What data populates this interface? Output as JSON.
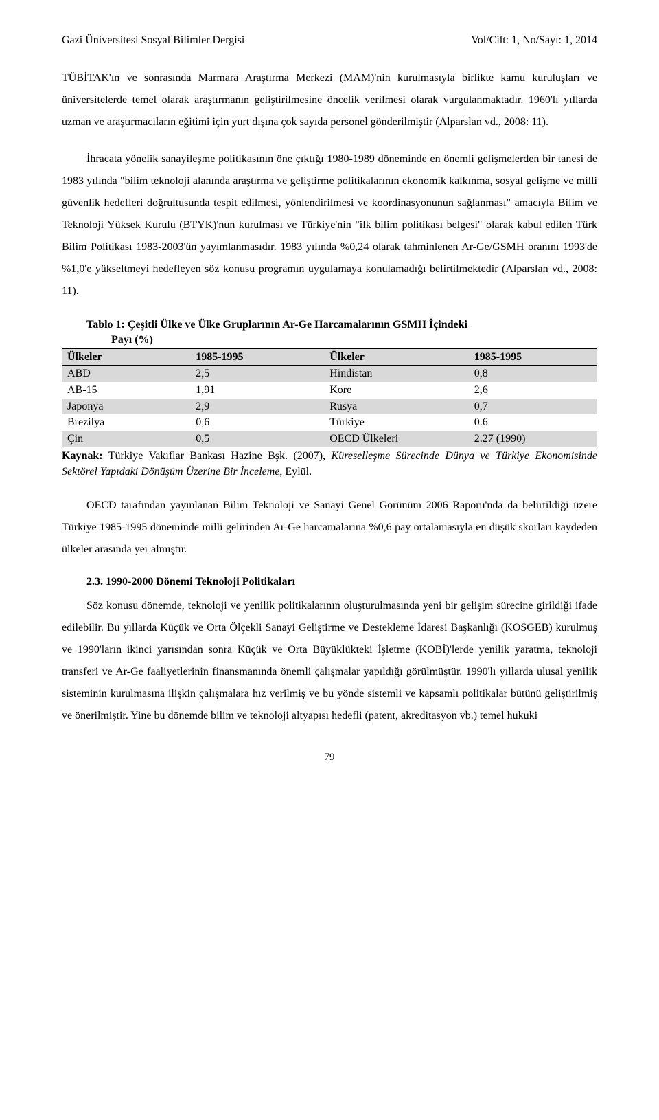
{
  "header": {
    "left": "Gazi Üniversitesi Sosyal Bilimler Dergisi",
    "right": "Vol/Cilt: 1, No/Sayı: 1, 2014"
  },
  "para1": "TÜBİTAK'ın ve sonrasında Marmara Araştırma Merkezi (MAM)'nin kurulmasıyla birlikte kamu kuruluşları ve üniversitelerde temel olarak araştırmanın geliştirilmesine öncelik verilmesi olarak vurgulanmaktadır. 1960'lı yıllarda uzman ve araştırmacıların eğitimi için yurt dışına çok sayıda personel gönderilmiştir (Alparslan vd., 2008: 11).",
  "para2": "İhracata yönelik sanayileşme politikasının öne çıktığı 1980-1989 döneminde en önemli gelişmelerden bir tanesi de 1983 yılında \"bilim teknoloji alanında araştırma ve geliştirme politikalarının ekonomik kalkınma, sosyal gelişme ve milli güvenlik hedefleri doğrultusunda tespit edilmesi, yönlendirilmesi ve koordinasyonunun sağlanması\" amacıyla Bilim ve Teknoloji Yüksek Kurulu (BTYK)'nun kurulması ve Türkiye'nin \"ilk bilim politikası belgesi\" olarak kabul edilen Türk Bilim Politikası 1983-2003'ün yayımlanmasıdır. 1983 yılında %0,24 olarak tahminlenen Ar-Ge/GSMH oranını 1993'de %1,0'e yükseltmeyi hedefleyen söz konusu programın uygulamaya konulamadığı belirtilmektedir (Alparslan vd., 2008: 11).",
  "table": {
    "title_line1": "Tablo 1: Çeşitli Ülke ve Ülke Gruplarının Ar-Ge Harcamalarının GSMH İçindeki",
    "title_line2": "Payı (%)",
    "headers": [
      "Ülkeler",
      "1985-1995",
      "Ülkeler",
      "1985-1995"
    ],
    "rows": [
      {
        "c1": "ABD",
        "c2": "2,5",
        "c3": "Hindistan",
        "c4": "0,8",
        "shaded": true
      },
      {
        "c1": "AB-15",
        "c2": "1,91",
        "c3": "Kore",
        "c4": "2,6",
        "shaded": false
      },
      {
        "c1": "Japonya",
        "c2": "2,9",
        "c3": "Rusya",
        "c4": "0,7",
        "shaded": true
      },
      {
        "c1": "Brezilya",
        "c2": "0,6",
        "c3": "Türkiye",
        "c4": "0.6",
        "shaded": false
      },
      {
        "c1": "Çin",
        "c2": "0,5",
        "c3": "OECD Ülkeleri",
        "c4": "2.27 (1990)",
        "shaded": true
      }
    ]
  },
  "source": {
    "label": "Kaynak:",
    "plain1": " Türkiye Vakıflar Bankası Hazine Bşk. (2007), ",
    "italic": "Küreselleşme Sürecinde Dünya ve Türkiye Ekonomisinde Sektörel Yapıdaki Dönüşüm Üzerine Bir İnceleme",
    "plain2": ", Eylül."
  },
  "para3": "OECD tarafından yayınlanan Bilim Teknoloji ve Sanayi Genel Görünüm 2006 Raporu'nda da belirtildiği üzere Türkiye 1985-1995 döneminde milli gelirinden Ar-Ge harcamalarına %0,6 pay ortalamasıyla en düşük skorları kaydeden ülkeler arasında yer almıştır.",
  "section": {
    "heading": "2.3.  1990-2000 Dönemi Teknoloji Politikaları"
  },
  "para4": "Söz konusu dönemde, teknoloji ve yenilik politikalarının oluşturulmasında yeni bir gelişim sürecine girildiği ifade edilebilir. Bu yıllarda Küçük ve Orta Ölçekli Sanayi Geliştirme ve Destekleme İdaresi Başkanlığı (KOSGEB) kurulmuş ve 1990'ların ikinci yarısından sonra Küçük ve Orta Büyüklükteki İşletme (KOBİ)'lerde yenilik yaratma, teknoloji transferi ve Ar-Ge faaliyetlerinin finansmanında önemli çalışmalar yapıldığı görülmüştür. 1990'lı yıllarda ulusal yenilik sisteminin kurulmasına ilişkin çalışmalara hız verilmiş ve bu yönde sistemli ve kapsamlı politikalar bütünü geliştirilmiş ve önerilmiştir. Yine bu dönemde bilim ve teknoloji altyapısı hedefli (patent, akreditasyon vb.) temel hukuki",
  "page_number": "79"
}
